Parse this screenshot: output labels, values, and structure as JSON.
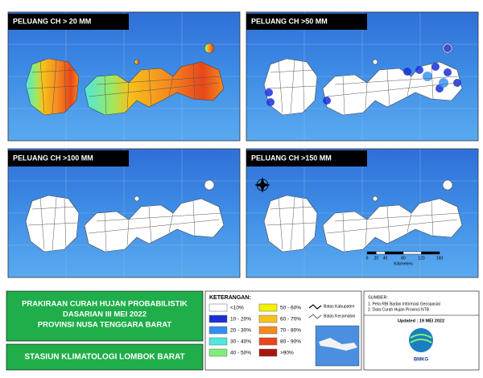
{
  "panels": [
    {
      "title": "PELUANG CH > 20 MM"
    },
    {
      "title": "PELUANG CH >50 MM"
    },
    {
      "title": "PELUANG CH >100 MM"
    },
    {
      "title": "PELUANG CH >150 MM"
    }
  ],
  "scale_bar": {
    "ticks": [
      0,
      20,
      40,
      80,
      120,
      160
    ],
    "unit": "Kilometers"
  },
  "title_block": {
    "lines": [
      "PRAKIRAAN CURAH HUJAN PROBABILISTIK",
      "DASARIAN  III MEI 2022",
      "PROVINSI NUSA TENGGARA BARAT"
    ],
    "station": "STASIUN KLIMATOLOGI LOMBOK BARAT"
  },
  "legend": {
    "heading": "KETERANGAN:",
    "items": [
      {
        "label": "<10%",
        "color": "#ffffff"
      },
      {
        "label": "10 - 20%",
        "color": "#1a2fd6"
      },
      {
        "label": "20 - 30%",
        "color": "#2f8ff0"
      },
      {
        "label": "30 - 40%",
        "color": "#4ee8e0"
      },
      {
        "label": "40 - 50%",
        "color": "#7cf07a"
      },
      {
        "label": "50 - 60%",
        "color": "#f5f000"
      },
      {
        "label": "60 - 70%",
        "color": "#f7c21a"
      },
      {
        "label": "70 - 80%",
        "color": "#f58a1f"
      },
      {
        "label": "80 - 90%",
        "color": "#e8461a"
      },
      {
        "label": ">90%",
        "color": "#a8140f"
      }
    ],
    "boundaries": [
      "Batas Kabupaten",
      "Batas Kecamatan"
    ]
  },
  "source": {
    "heading": "SUMBER:",
    "items": [
      "1. Peta RBI Badan Informasi Geospasial",
      "2. Data Curah Hujan Provinsi NTB"
    ],
    "updated": "Updated : 19 MEI 2022",
    "logo": "BMKG"
  }
}
